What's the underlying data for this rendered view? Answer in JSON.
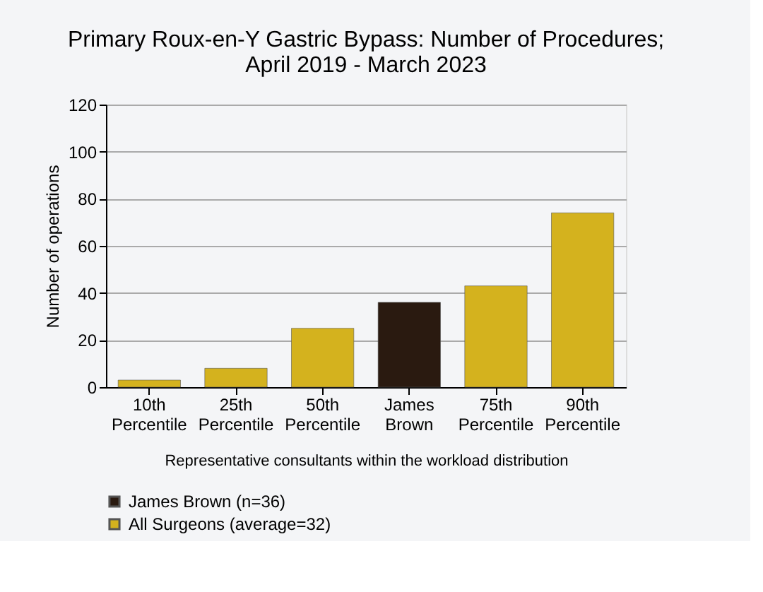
{
  "chart_data": {
    "type": "bar",
    "title": [
      "Primary Roux-en-Y Gastric Bypass: Number of Procedures;",
      "April 2019 - March 2023"
    ],
    "xlabel": "Representative consultants within the workload distribution",
    "ylabel": "Number of operations",
    "categories": [
      "10th\nPercentile",
      "25th\nPercentile",
      "50th\nPercentile",
      "James\nBrown",
      "75th\nPercentile",
      "90th\nPercentile"
    ],
    "series": [
      {
        "name": "James Brown (n=36)",
        "color": "#2a1a10",
        "values": [
          null,
          null,
          null,
          36,
          null,
          null
        ]
      },
      {
        "name": "All Surgeons (average=32)",
        "color": "#d4b21e",
        "values": [
          3,
          8,
          25,
          null,
          43,
          74
        ]
      }
    ],
    "ylim": [
      0,
      120
    ],
    "yticks": [
      0,
      20,
      40,
      60,
      80,
      100,
      120
    ],
    "grid": "y",
    "legend": "bottom"
  }
}
